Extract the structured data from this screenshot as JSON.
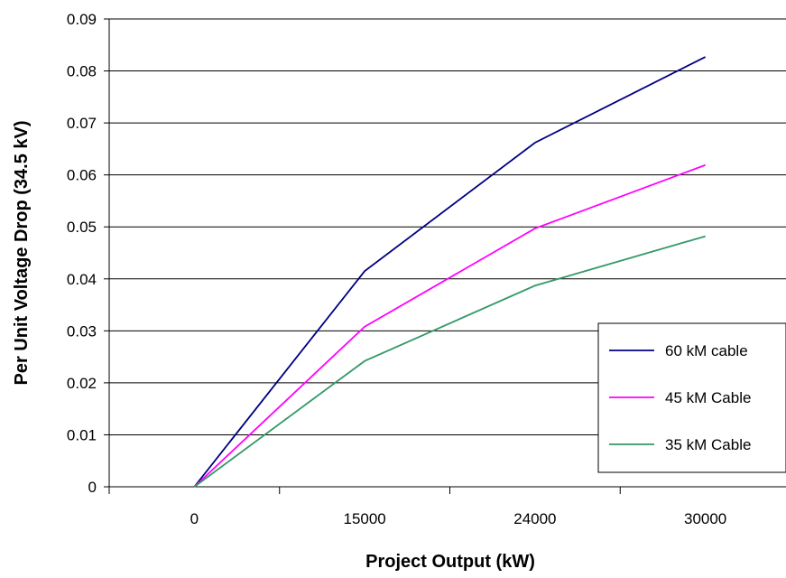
{
  "chart_data": {
    "type": "line",
    "title": "",
    "xlabel": "Project Output (kW)",
    "ylabel": "Per Unit Voltage Drop (34.5 kV)",
    "categories": [
      "0",
      "15000",
      "24000",
      "30000"
    ],
    "ylim": [
      0,
      0.09
    ],
    "yticks": [
      "0",
      "0.01",
      "0.02",
      "0.03",
      "0.04",
      "0.05",
      "0.06",
      "0.07",
      "0.08",
      "0.09"
    ],
    "grid": true,
    "legend_position": "right",
    "series": [
      {
        "name": "60 kM cable",
        "color": "#000080",
        "values": [
          0,
          0.0415,
          0.0662,
          0.0827
        ]
      },
      {
        "name": "45 kM Cable",
        "color": "#FF00FF",
        "values": [
          0,
          0.0308,
          0.0497,
          0.0619
        ]
      },
      {
        "name": "35 kM Cable",
        "color": "#339966",
        "values": [
          0,
          0.0242,
          0.0387,
          0.0482
        ]
      }
    ]
  }
}
